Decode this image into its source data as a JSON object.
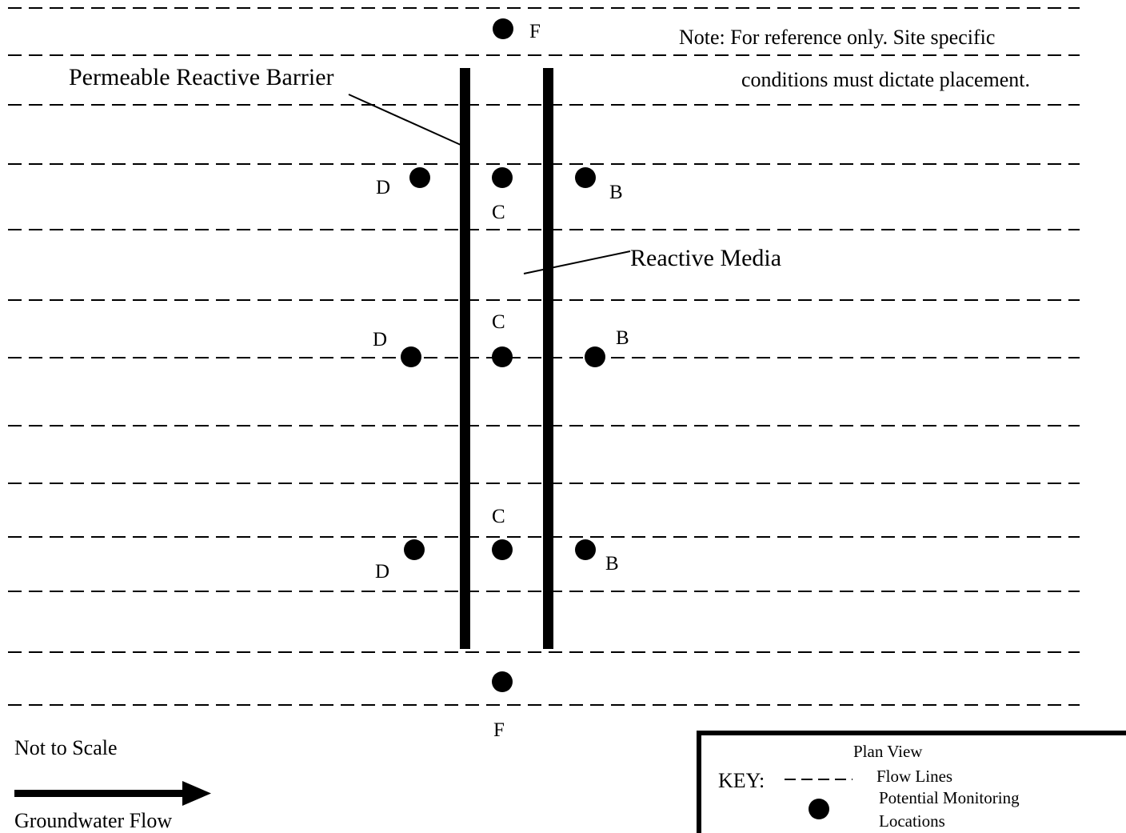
{
  "barrier_label": "Permeable Reactive Barrier",
  "media_label": "Reactive Media",
  "note_line1": "Note: For reference only.  Site specific",
  "note_line2": "conditions must dictate placement.",
  "not_to_scale": "Not to Scale",
  "flow_label": "Groundwater Flow",
  "key": {
    "title": "Plan View",
    "key_label": "KEY:",
    "flow_lines_label": "Flow Lines",
    "monitoring_line1": "Potential Monitoring",
    "monitoring_line2": "Locations"
  },
  "monitoring_points": {
    "f_top": "F",
    "f_bottom": "F",
    "row1": {
      "upgradient": "D",
      "in_media": "C",
      "downgradient": "B"
    },
    "row2": {
      "upgradient": "D",
      "in_media": "C",
      "downgradient": "B"
    },
    "row3": {
      "upgradient": "D",
      "in_media": "C",
      "downgradient": "B"
    }
  },
  "colors": {
    "ink": "#000000",
    "background": "#ffffff"
  }
}
